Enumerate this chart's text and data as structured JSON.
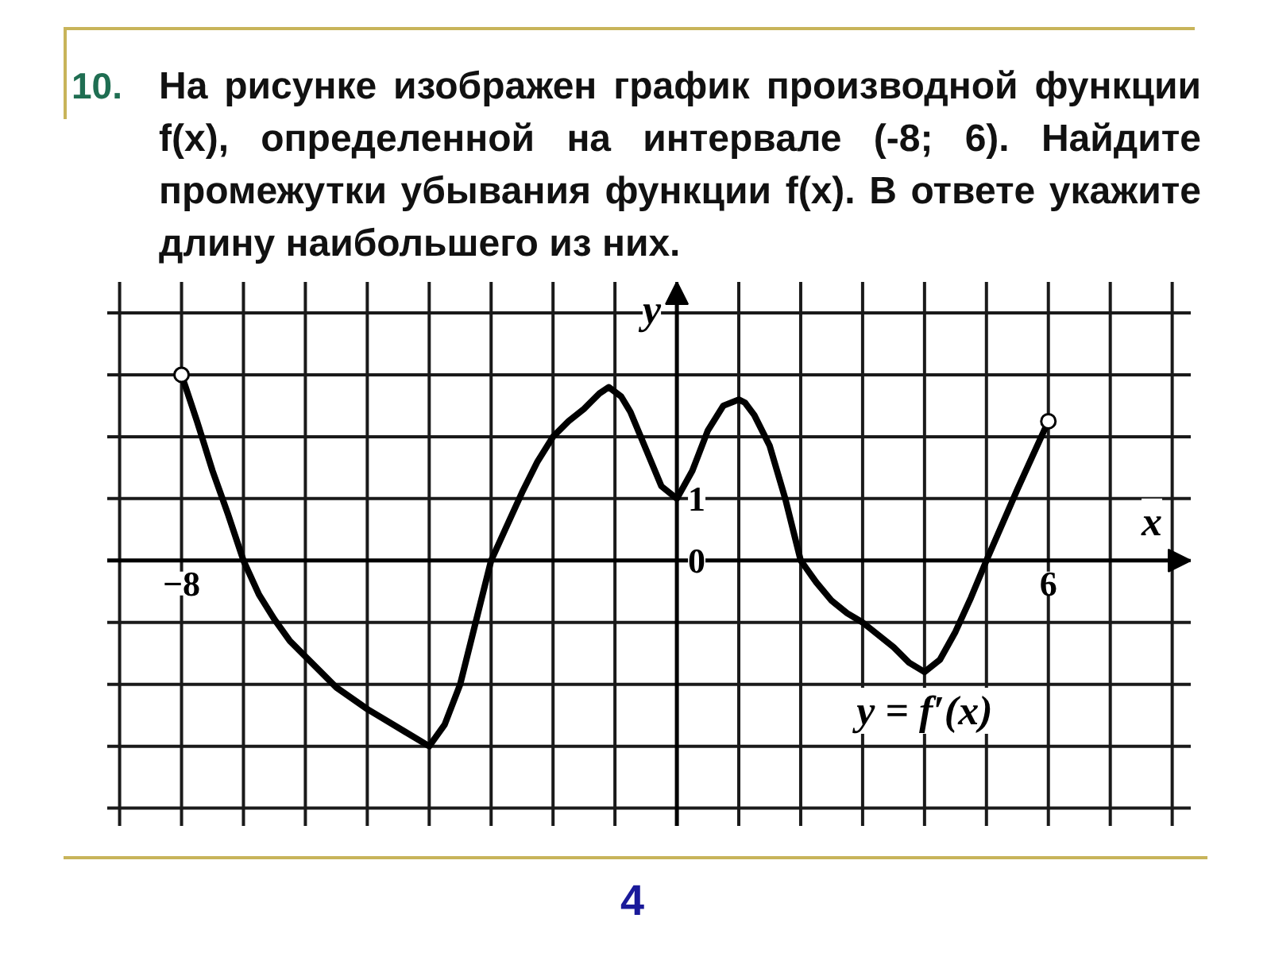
{
  "chart_data": {
    "type": "line",
    "title": "10. На рисунке изображен график производной функции f(x), определенной на интервале (-8; 6). Найдите промежутки убывания функции f(x). В ответе укажите длину наибольшего из них.",
    "xlabel": "x",
    "ylabel": "y",
    "annotations": [
      "4"
    ],
    "x": [
      -8,
      -7.75,
      -7.5,
      -7.25,
      -7,
      -6.75,
      -6.5,
      -6.25,
      -6,
      -5.5,
      -5,
      -4.5,
      -4,
      -3.75,
      -3.5,
      -3.25,
      -3,
      -2.75,
      -2.5,
      -2.25,
      -2,
      -1.75,
      -1.5,
      -1.25,
      -1.1,
      -0.9,
      -0.75,
      -0.5,
      -0.25,
      0,
      0.25,
      0.5,
      0.75,
      1,
      1.1,
      1.25,
      1.5,
      1.75,
      2,
      2.25,
      2.5,
      2.75,
      3,
      3.5,
      3.75,
      4,
      4.25,
      4.5,
      4.75,
      5,
      5.5,
      6
    ],
    "series": [
      {
        "name": "y = f′(x)",
        "color": "#000000",
        "values": [
          3,
          2.25,
          1.45,
          0.75,
          0,
          -0.55,
          -0.95,
          -1.3,
          -1.55,
          -2.05,
          -2.4,
          -2.7,
          -3,
          -2.65,
          -2,
          -1,
          0,
          0.55,
          1.1,
          1.6,
          2,
          2.25,
          2.45,
          2.7,
          2.8,
          2.65,
          2.4,
          1.8,
          1.2,
          1,
          1.45,
          2.1,
          2.5,
          2.6,
          2.55,
          2.35,
          1.85,
          1.0,
          0,
          -0.35,
          -0.65,
          -0.85,
          -1,
          -1.4,
          -1.65,
          -1.8,
          -1.6,
          -1.15,
          -0.6,
          0,
          1.15,
          2.25
        ]
      },
      {
        "type": "scatter",
        "marker": "circle",
        "x": [
          -8,
          6
        ],
        "color": "#000000",
        "values": [
          3,
          2.25
        ]
      }
    ],
    "xlim": [
      -9.2,
      8.3
    ],
    "ylim": [
      -4.3,
      4.5
    ],
    "xticks": [
      {
        "value": -9,
        "label": null
      },
      {
        "value": -8,
        "label": "−8"
      },
      {
        "value": -7,
        "label": null
      },
      {
        "value": -6,
        "label": null
      },
      {
        "value": -5,
        "label": null
      },
      {
        "value": -4,
        "label": null
      },
      {
        "value": -3,
        "label": null
      },
      {
        "value": -2,
        "label": null
      },
      {
        "value": -1,
        "label": null
      },
      {
        "value": 0,
        "label": null
      },
      {
        "value": 1,
        "label": null
      },
      {
        "value": 2,
        "label": null
      },
      {
        "value": 3,
        "label": null
      },
      {
        "value": 4,
        "label": null
      },
      {
        "value": 5,
        "label": null
      },
      6,
      {
        "value": 7,
        "label": null
      },
      {
        "value": 8,
        "label": null
      }
    ],
    "yticks": [
      {
        "value": -4,
        "label": null
      },
      {
        "value": -3,
        "label": null
      },
      {
        "value": -2,
        "label": null
      },
      {
        "value": -1,
        "label": null
      },
      0,
      1,
      {
        "value": 2,
        "label": null
      },
      {
        "value": 3,
        "label": null
      },
      {
        "value": 4,
        "label": null
      }
    ],
    "grid": true
  }
}
